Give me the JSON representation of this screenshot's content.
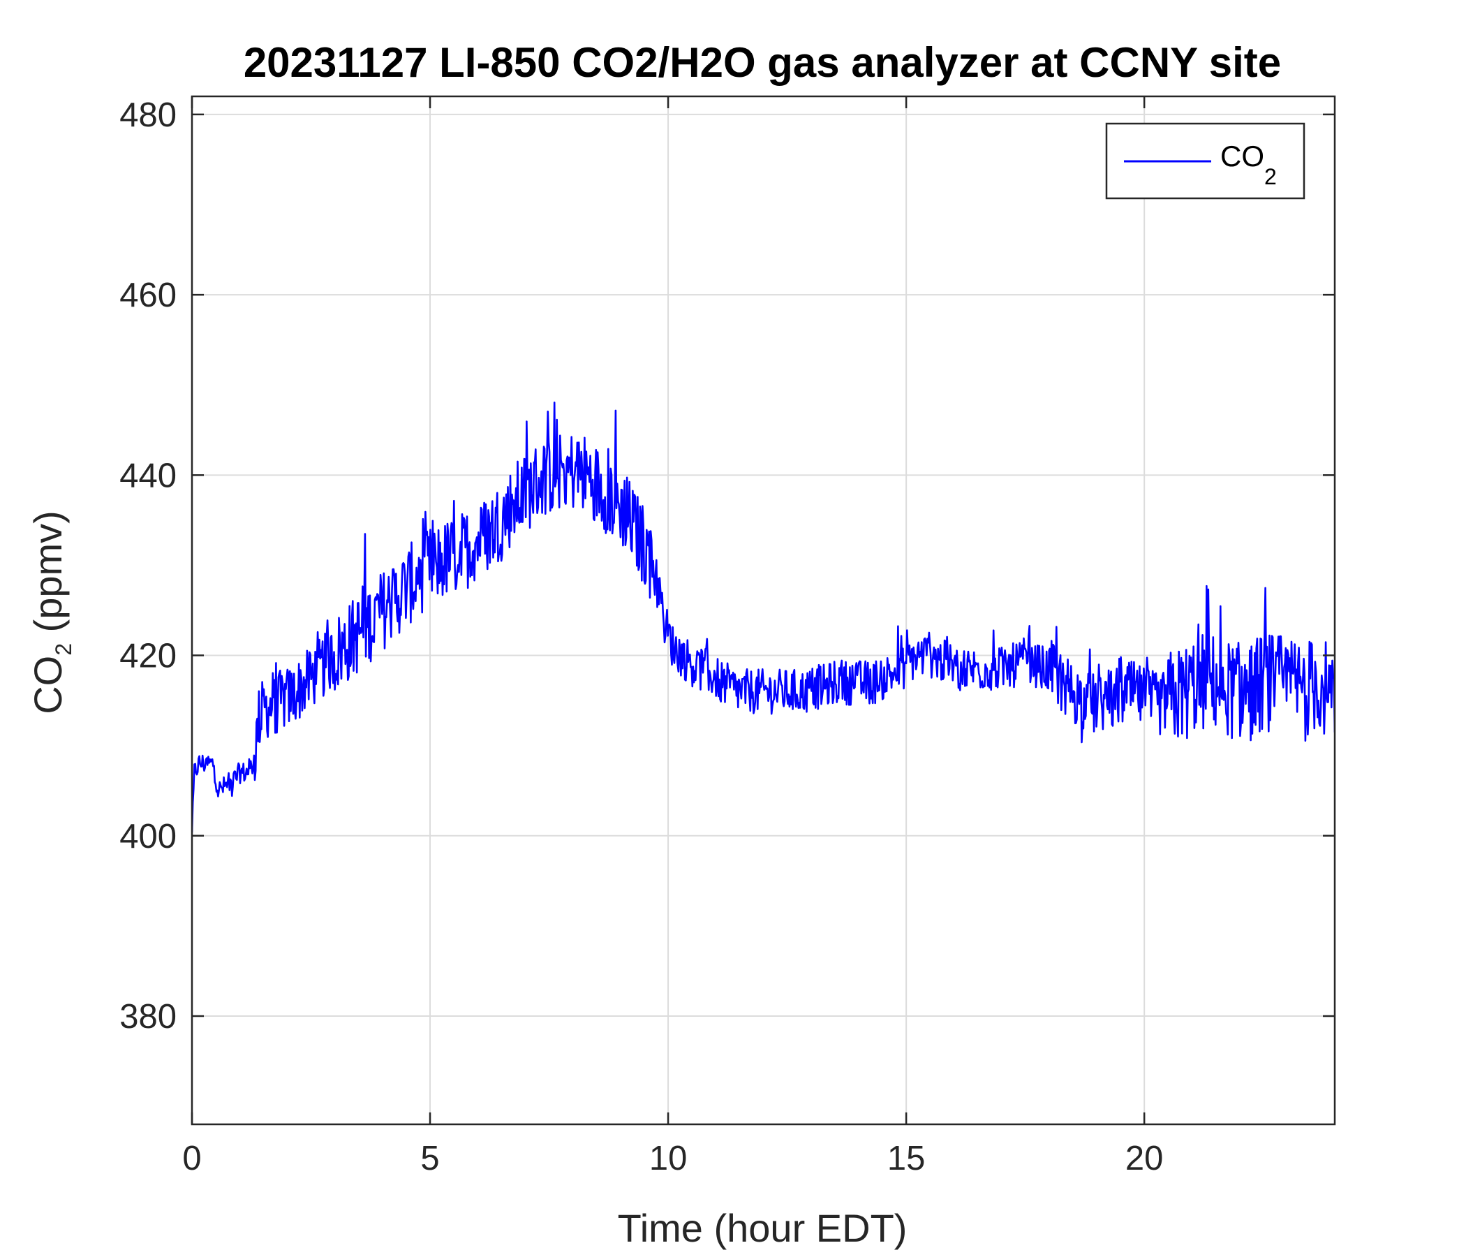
{
  "chart_data": {
    "type": "line",
    "title": "20231127 LI-850 CO2/H2O gas analyzer at CCNY site",
    "xlabel": "Time (hour EDT)",
    "ylabel": {
      "main": "CO",
      "sub": "2",
      "unit": " (ppmv)"
    },
    "xlim": [
      0,
      24
    ],
    "ylim": [
      368,
      482
    ],
    "xticks": [
      0,
      5,
      10,
      15,
      20
    ],
    "yticks": [
      380,
      400,
      420,
      440,
      460,
      480
    ],
    "xtick_labels": [
      "0",
      "5",
      "10",
      "15",
      "20"
    ],
    "ytick_labels": [
      "380",
      "400",
      "420",
      "440",
      "460",
      "480"
    ],
    "grid": true,
    "legend": {
      "position": "top-right",
      "entries": [
        {
          "main": "CO",
          "sub": "2"
        }
      ]
    },
    "series": [
      {
        "name": "CO2",
        "color": "#0000ff",
        "x": [
          0,
          0.05,
          0.15,
          0.3,
          0.45,
          0.55,
          0.7,
          0.85,
          1.0,
          1.15,
          1.3,
          1.4,
          1.5,
          1.7,
          1.9,
          2.1,
          2.3,
          2.5,
          2.7,
          2.9,
          3.1,
          3.3,
          3.5,
          3.7,
          3.9,
          4.1,
          4.3,
          4.5,
          4.7,
          4.9,
          5.1,
          5.3,
          5.5,
          5.7,
          5.9,
          6.1,
          6.3,
          6.5,
          6.7,
          6.9,
          7.1,
          7.3,
          7.5,
          7.7,
          7.9,
          8.1,
          8.3,
          8.5,
          8.7,
          8.9,
          9.1,
          9.3,
          9.5,
          9.7,
          9.8,
          9.9,
          10.1,
          10.3,
          10.5,
          10.7,
          10.9,
          11.1,
          11.3,
          11.5,
          11.7,
          11.9,
          12.1,
          12.3,
          12.5,
          12.7,
          12.9,
          13.1,
          13.3,
          13.5,
          13.7,
          13.9,
          14.1,
          14.3,
          14.5,
          14.7,
          14.9,
          15.1,
          15.3,
          15.5,
          15.7,
          15.9,
          16.1,
          16.3,
          16.5,
          16.7,
          16.9,
          17.1,
          17.3,
          17.5,
          17.7,
          17.9,
          18.1,
          18.3,
          18.5,
          18.7,
          18.9,
          19.1,
          19.3,
          19.5,
          19.7,
          19.9,
          20.1,
          20.3,
          20.5,
          20.7,
          20.9,
          21.1,
          21.3,
          21.5,
          21.7,
          21.9,
          22.1,
          22.3,
          22.5,
          22.7,
          22.9,
          23.1,
          23.3,
          23.5,
          23.7,
          23.85,
          24.0
        ],
        "y": [
          400,
          407,
          408,
          408,
          408,
          405,
          405.5,
          406,
          407,
          407,
          408,
          413,
          414,
          414.5,
          415,
          415.5,
          416.5,
          417.5,
          418.5,
          419.5,
          420.5,
          421.5,
          422.5,
          423.5,
          424.5,
          425.5,
          426.5,
          427.5,
          428.5,
          429.5,
          430,
          430.5,
          431,
          431.5,
          432.5,
          433,
          434,
          435,
          436.5,
          437.5,
          438.5,
          439.5,
          440,
          440.5,
          440.5,
          440.5,
          440,
          439,
          438,
          437,
          436,
          434,
          432,
          430,
          428,
          424,
          421,
          420,
          419,
          418.5,
          418,
          417,
          416.5,
          416,
          416,
          416,
          416,
          416,
          416,
          416,
          416,
          416.5,
          416.5,
          417,
          417,
          417,
          417,
          417,
          417.5,
          418,
          418.5,
          419.5,
          420,
          420,
          419.5,
          419,
          418.5,
          418.5,
          418.5,
          418.5,
          418.5,
          418.5,
          419,
          419.5,
          419,
          418.5,
          418,
          417,
          416,
          415,
          414.5,
          415,
          415,
          415.5,
          416,
          415.5,
          415,
          414.5,
          415,
          415.5,
          416,
          417,
          417,
          417,
          416.5,
          416,
          416,
          416.5,
          417,
          417,
          417,
          416.5,
          416.5,
          416.5,
          417,
          416,
          413
        ]
      }
    ]
  }
}
